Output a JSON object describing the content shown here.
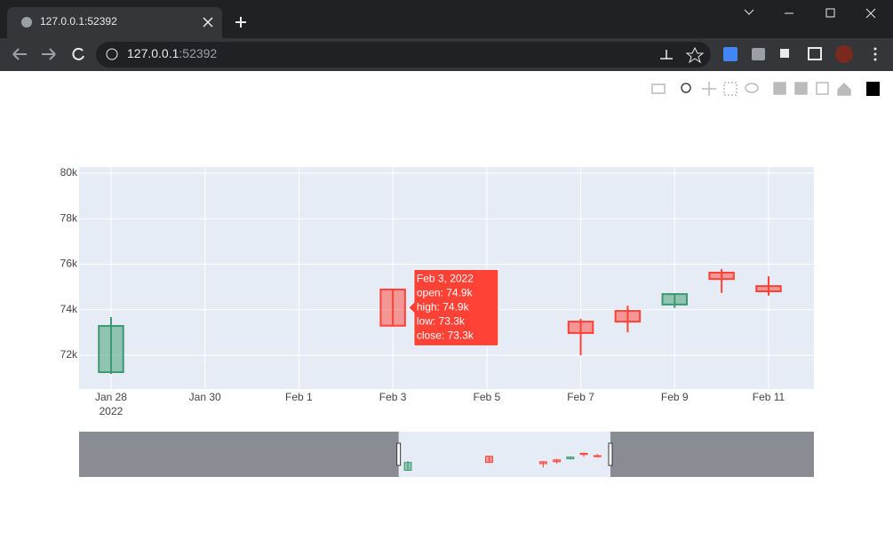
{
  "browser": {
    "tab_title": "127.0.0.1:52392",
    "url_host": "127.0.0.1",
    "url_port": ":52392"
  },
  "chart_data": {
    "type": "candlestick",
    "x": [
      "2022-01-28",
      "2022-02-03",
      "2022-02-07",
      "2022-02-08",
      "2022-02-09",
      "2022-02-10",
      "2022-02-11"
    ],
    "open": [
      71260,
      74890,
      73480,
      73950,
      74230,
      75630,
      75040
    ],
    "high": [
      73680,
      74890,
      73600,
      74180,
      74690,
      75790,
      75470
    ],
    "low": [
      71180,
      73300,
      72000,
      73010,
      74080,
      74740,
      74620
    ],
    "close": [
      73290,
      73300,
      72980,
      73480,
      74690,
      75350,
      74810
    ],
    "increasing_color": "#3d9970",
    "decreasing_color": "#ff4136",
    "xlim": [
      "2022-01-27T07:40:00Z",
      "2022-02-11T23:10:00Z"
    ],
    "xticks": [
      {
        "value": "2022-01-28",
        "label": "Jan 28"
      },
      {
        "value": "2022-01-30",
        "label": "Jan 30"
      },
      {
        "value": "2022-02-01",
        "label": "Feb 1"
      },
      {
        "value": "2022-02-03",
        "label": "Feb 3"
      },
      {
        "value": "2022-02-05",
        "label": "Feb 5"
      },
      {
        "value": "2022-02-07",
        "label": "Feb 7"
      },
      {
        "value": "2022-02-09",
        "label": "Feb 9"
      },
      {
        "value": "2022-02-11",
        "label": "Feb 11"
      }
    ],
    "x_year_label": "2022",
    "ylim": [
      70520,
      80270
    ],
    "yticks": [
      {
        "value": 72000,
        "label": "72k"
      },
      {
        "value": 74000,
        "label": "74k"
      },
      {
        "value": 76000,
        "label": "76k"
      },
      {
        "value": 78000,
        "label": "78k"
      },
      {
        "value": 80000,
        "label": "80k"
      }
    ],
    "grid": true,
    "rangeslider_xlim": [
      "2022-01-03T17:00:00Z",
      "2022-02-27T00:00:00Z"
    ],
    "hover": {
      "index": 1,
      "lines": [
        "Feb 3, 2022",
        "open: 74.9k",
        "high: 74.9k",
        "low: 73.3k",
        "close: 73.3k"
      ]
    }
  }
}
